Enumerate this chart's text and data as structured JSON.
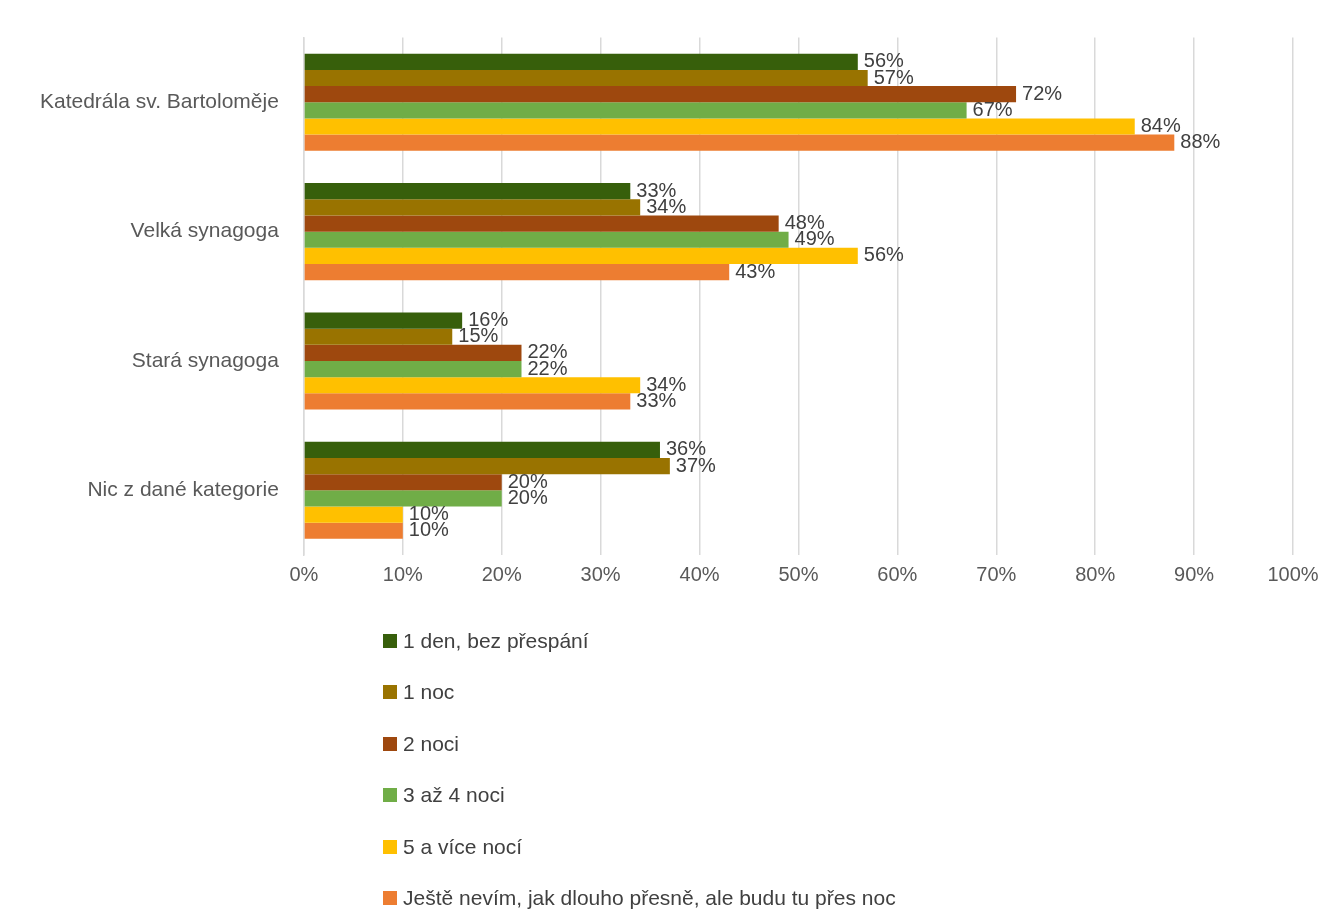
{
  "chart_data": {
    "type": "bar",
    "orientation": "horizontal",
    "categories": [
      "Katedrála sv. Bartoloměje",
      "Velká synagoga",
      "Stará synagoga",
      "Nic z dané kategorie"
    ],
    "series": [
      {
        "name": "1 den, bez přespání",
        "color": "#375f0b",
        "values": [
          56,
          33,
          16,
          36
        ],
        "value_labels": [
          "56%",
          "33%",
          "16%",
          "36%"
        ]
      },
      {
        "name": "1 noc",
        "color": "#997300",
        "values": [
          57,
          34,
          15,
          37
        ],
        "value_labels": [
          "57%",
          "34%",
          "15%",
          "37%"
        ]
      },
      {
        "name": "2 noci",
        "color": "#9e480e",
        "values": [
          72,
          48,
          22,
          20
        ],
        "value_labels": [
          "72%",
          "48%",
          "22%",
          "20%"
        ]
      },
      {
        "name": "3 až 4 noci",
        "color": "#70ad47",
        "values": [
          67,
          49,
          22,
          20
        ],
        "value_labels": [
          "67%",
          "49%",
          "22%",
          "20%"
        ]
      },
      {
        "name": "5 a více nocí",
        "color": "#ffc000",
        "values": [
          84,
          56,
          34,
          10
        ],
        "value_labels": [
          "84%",
          "56%",
          "34%",
          "10%"
        ]
      },
      {
        "name": "Ještě nevím, jak dlouho přesně, ale budu tu přes noc",
        "color": "#ed7d31",
        "values": [
          88,
          43,
          33,
          10
        ],
        "value_labels": [
          "88%",
          "43%",
          "33%",
          "10%"
        ]
      }
    ],
    "xlim": [
      0,
      100
    ],
    "xticks": [
      {
        "value": 0,
        "label": "0%"
      },
      {
        "value": 10,
        "label": "10%"
      },
      {
        "value": 20,
        "label": "20%"
      },
      {
        "value": 30,
        "label": "30%"
      },
      {
        "value": 40,
        "label": "40%"
      },
      {
        "value": 50,
        "label": "50%"
      },
      {
        "value": 60,
        "label": "60%"
      },
      {
        "value": 70,
        "label": "70%"
      },
      {
        "value": 80,
        "label": "80%"
      },
      {
        "value": 90,
        "label": "90%"
      },
      {
        "value": 100,
        "label": "100%"
      }
    ],
    "grid": "x",
    "legend": "bottom"
  }
}
